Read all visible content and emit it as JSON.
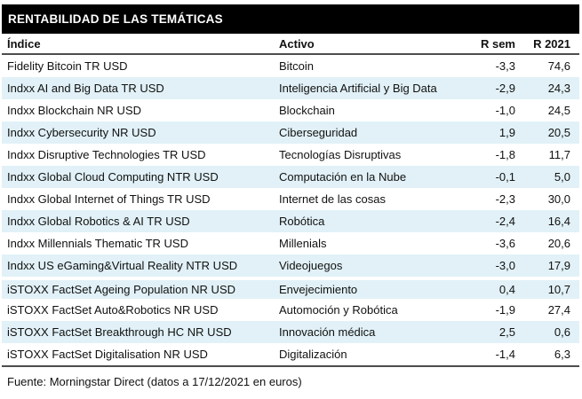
{
  "title_bar": {
    "title": "RENTABILIDAD DE LAS TEMÁTICAS",
    "bg_color": "#000000",
    "text_color": "#ffffff"
  },
  "table": {
    "columns": [
      "Índice",
      "Activo",
      "R sem",
      "R 2021"
    ],
    "rows": [
      {
        "indice": "Fidelity Bitcoin TR USD",
        "activo": "Bitcoin",
        "r_sem": "-3,3",
        "r_2021": "74,6"
      },
      {
        "indice": "Indxx AI and Big Data TR USD",
        "activo": "Inteligencia Artificial y Big Data",
        "r_sem": "-2,9",
        "r_2021": "24,3"
      },
      {
        "indice": "Indxx Blockchain NR USD",
        "activo": "Blockchain",
        "r_sem": "-1,0",
        "r_2021": "24,5"
      },
      {
        "indice": "Indxx Cybersecurity NR USD",
        "activo": "Ciberseguridad",
        "r_sem": "1,9",
        "r_2021": "20,5"
      },
      {
        "indice": "Indxx Disruptive Technologies TR USD",
        "activo": "Tecnologías Disruptivas",
        "r_sem": "-1,8",
        "r_2021": "11,7"
      },
      {
        "indice": "Indxx Global Cloud Computing NTR USD",
        "activo": "Computación en la Nube",
        "r_sem": "-0,1",
        "r_2021": "5,0"
      },
      {
        "indice": "Indxx Global Internet of Things TR USD",
        "activo": "Internet de las cosas",
        "r_sem": "-2,3",
        "r_2021": "30,0"
      },
      {
        "indice": "Indxx Global Robotics & AI TR USD",
        "activo": "Robótica",
        "r_sem": "-2,4",
        "r_2021": "16,4"
      },
      {
        "indice": "Indxx Millennials Thematic TR USD",
        "activo": "Millenials",
        "r_sem": "-3,6",
        "r_2021": "20,6"
      },
      {
        "indice": "Indxx US eGaming&Virtual Reality NTR USD",
        "activo": "Videojuegos",
        "r_sem": "-3,0",
        "r_2021": "17,9"
      },
      {
        "indice": "iSTOXX FactSet Ageing Population NR USD",
        "activo": "Envejecimiento",
        "r_sem": "0,4",
        "r_2021": "10,7"
      },
      {
        "indice": "iSTOXX FactSet Auto&Robotics NR USD",
        "activo": "Automoción y Robótica",
        "r_sem": "-1,9",
        "r_2021": "27,4"
      },
      {
        "indice": "iSTOXX FactSet Breakthrough HC NR USD",
        "activo": "Innovación médica",
        "r_sem": "2,5",
        "r_2021": "0,6"
      },
      {
        "indice": "iSTOXX FactSet Digitalisation NR USD",
        "activo": "Digitalización",
        "r_sem": "-1,4",
        "r_2021": "6,3"
      }
    ]
  },
  "footer": {
    "source": "Fuente: Morningstar Direct (datos a 17/12/2021 en euros)"
  },
  "colors": {
    "stripe": "#e1f1f7",
    "rule": "#4d4d4d",
    "title_bg": "#000000"
  }
}
